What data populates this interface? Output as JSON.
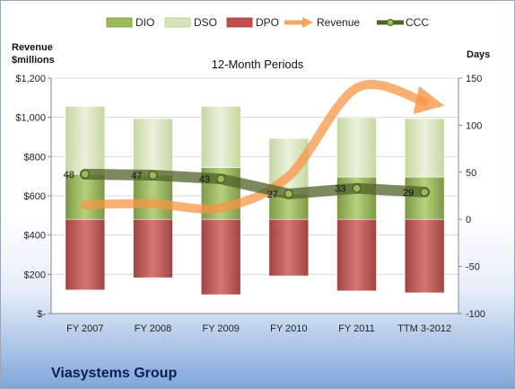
{
  "company": "Viasystems Group",
  "chart_data": {
    "type": "bar",
    "title": "12-Month Periods",
    "left_axis_title": [
      "Revenue",
      "$millions"
    ],
    "right_axis_title": "Days",
    "categories": [
      "FY 2007",
      "FY 2008",
      "FY 2009",
      "FY 2010",
      "FY 2011",
      "TTM 3-2012"
    ],
    "left_ylim": [
      0,
      1200
    ],
    "left_ticks": [
      0,
      200,
      400,
      600,
      800,
      1000,
      1200
    ],
    "left_tick_labels": [
      "$-",
      "$200",
      "$400",
      "$600",
      "$800",
      "$1,000",
      "$1,200"
    ],
    "right_ylim": [
      -100,
      150
    ],
    "right_ticks": [
      -100,
      -50,
      0,
      50,
      100,
      150
    ],
    "right_tick_labels": [
      "-100",
      "-50",
      "0",
      "50",
      "100",
      "150"
    ],
    "grid": true,
    "legend_position": "top",
    "legend": [
      "DIO",
      "DSO",
      "DPO",
      "Revenue",
      "CCC"
    ],
    "stack_series": [
      {
        "name": "DPO",
        "axis": "right",
        "from": [
          -75,
          -62,
          -80,
          -60,
          -76,
          -78
        ],
        "to": [
          0,
          0,
          0,
          0,
          0,
          0
        ],
        "color": "#c0504d"
      },
      {
        "name": "DIO",
        "axis": "right",
        "from": [
          0,
          0,
          0,
          0,
          0,
          0
        ],
        "to": [
          48,
          47,
          55,
          27,
          45,
          45
        ],
        "color": "#9bbb59"
      },
      {
        "name": "DSO",
        "axis": "right",
        "from": [
          48,
          47,
          55,
          27,
          45,
          45
        ],
        "to": [
          120,
          107,
          120,
          86,
          108,
          107
        ],
        "color": "#d7e4bd"
      }
    ],
    "revenue": {
      "name": "Revenue",
      "axis": "left",
      "values": [
        555,
        560,
        540,
        700,
        1150,
        1080
      ],
      "color": "#f79646"
    },
    "ccc": {
      "name": "CCC",
      "axis": "right",
      "values": [
        48,
        47,
        43,
        27,
        33,
        29
      ],
      "labels": [
        "48",
        "47",
        "43",
        "27",
        "33",
        "29"
      ],
      "color": "#4f6228"
    }
  }
}
